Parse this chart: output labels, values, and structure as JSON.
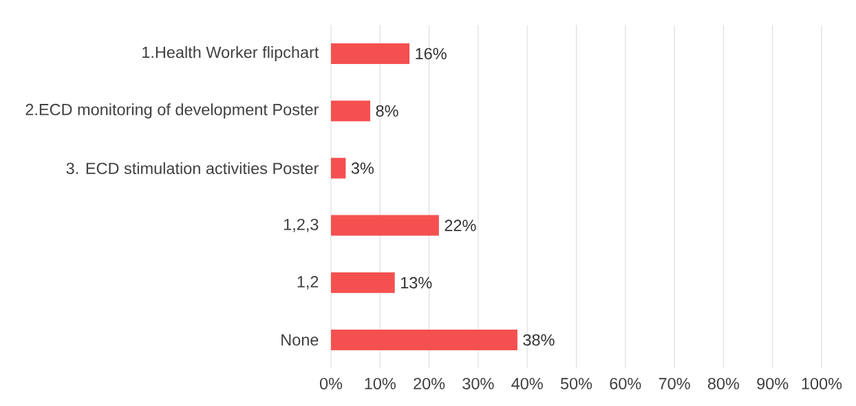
{
  "chart_data": {
    "type": "bar",
    "orientation": "horizontal",
    "categories": [
      "1.Health Worker flipchart",
      "2.ECD monitoring of development Poster",
      "3. ECD stimulation activities Poster",
      "1,2,3",
      "1,2",
      "None"
    ],
    "values": [
      16,
      8,
      3,
      22,
      13,
      38
    ],
    "value_labels": [
      "16%",
      "8%",
      "3%",
      "22%",
      "13%",
      "38%"
    ],
    "color": "#f55050",
    "xlim": [
      0,
      100
    ],
    "xticks": [
      {
        "value": 0,
        "label": "0%"
      },
      {
        "value": 10,
        "label": "10%"
      },
      {
        "value": 20,
        "label": "20%"
      },
      {
        "value": 30,
        "label": "30%"
      },
      {
        "value": 40,
        "label": "40%"
      },
      {
        "value": 50,
        "label": "50%"
      },
      {
        "value": 60,
        "label": "60%"
      },
      {
        "value": 70,
        "label": "70%"
      },
      {
        "value": 80,
        "label": "80%"
      },
      {
        "value": 90,
        "label": "90%"
      },
      {
        "value": 100,
        "label": "100%"
      }
    ],
    "grid": "x"
  }
}
